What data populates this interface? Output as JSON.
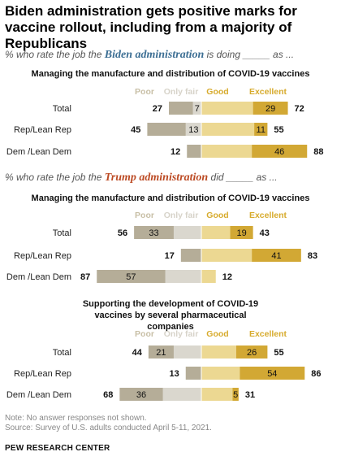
{
  "title": "Biden administration gets positive marks for vaccine rollout, including from a majority of Republicans",
  "subtitle_biden": {
    "pre": "% who rate the job the ",
    "emph": "Biden administration",
    "post": " is doing _____ as ..."
  },
  "subtitle_trump": {
    "pre": "% who rate the job the ",
    "emph": "Trump administration",
    "post": " did _____ as ..."
  },
  "legend": {
    "poor": "Poor",
    "only_fair": "Only fair",
    "good": "Good",
    "excellent": "Excellent"
  },
  "colors": {
    "poor": "#b5ad98",
    "only_fair": "#dad7ce",
    "good": "#ecd892",
    "excellent": "#d2a834",
    "biden": "#3d6f94",
    "trump": "#bc4a23",
    "hdr_neg": "#c8bfa6",
    "hdr_pos": "#d7ab2d"
  },
  "notes": {
    "note": "Note: No answer responses not shown.",
    "source": "Source: Survey of U.S. adults conducted April 5-11, 2021.",
    "org": "PEW RESEARCH CENTER"
  },
  "chart_data": [
    {
      "type": "bar",
      "title": "Managing the manufacture and distribution of COVID-19 vaccines",
      "categories": [
        "Total",
        "Rep/Lean Rep",
        "Dem /Lean Dem"
      ],
      "series": [
        {
          "name": "Poor",
          "values": [
            null,
            null,
            null
          ]
        },
        {
          "name": "Only fair",
          "values": [
            7,
            13,
            null
          ]
        },
        {
          "name": "Good",
          "values": [
            null,
            null,
            null
          ]
        },
        {
          "name": "Excellent",
          "values": [
            29,
            11,
            46
          ]
        }
      ],
      "net_negative": [
        27,
        45,
        12
      ],
      "net_positive": [
        72,
        55,
        88
      ]
    },
    {
      "type": "bar",
      "title": "Managing the manufacture and distribution of COVID-19 vaccines",
      "categories": [
        "Total",
        "Rep/Lean Rep",
        "Dem /Lean Dem"
      ],
      "series": [
        {
          "name": "Poor",
          "values": [
            33,
            null,
            57
          ]
        },
        {
          "name": "Only fair",
          "values": [
            null,
            null,
            null
          ]
        },
        {
          "name": "Good",
          "values": [
            null,
            null,
            null
          ]
        },
        {
          "name": "Excellent",
          "values": [
            19,
            41,
            null
          ]
        }
      ],
      "net_negative": [
        56,
        17,
        87
      ],
      "net_positive": [
        43,
        83,
        12
      ]
    },
    {
      "type": "bar",
      "title": "Supporting the development of COVID-19 vaccines by several pharmaceutical companies",
      "categories": [
        "Total",
        "Rep/Lean Rep",
        "Dem /Lean Dem"
      ],
      "series": [
        {
          "name": "Poor",
          "values": [
            21,
            null,
            36
          ]
        },
        {
          "name": "Only fair",
          "values": [
            null,
            null,
            null
          ]
        },
        {
          "name": "Good",
          "values": [
            null,
            null,
            null
          ]
        },
        {
          "name": "Excellent",
          "values": [
            26,
            54,
            5
          ]
        }
      ],
      "net_negative": [
        44,
        13,
        68
      ],
      "net_positive": [
        55,
        86,
        31
      ]
    }
  ]
}
